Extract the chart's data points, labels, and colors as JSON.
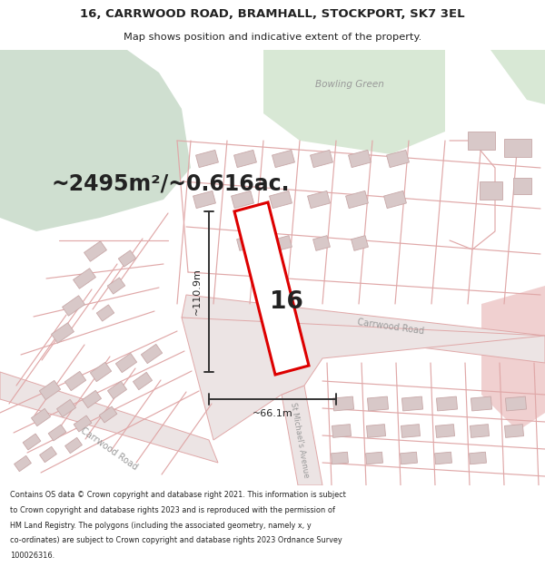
{
  "title_line1": "16, CARRWOOD ROAD, BRAMHALL, STOCKPORT, SK7 3EL",
  "title_line2": "Map shows position and indicative extent of the property.",
  "area_text": "~2495m²/~0.616ac.",
  "label_16": "16",
  "dim_vertical": "~110.9m",
  "dim_horizontal": "~66.1m",
  "bowling_green_label": "Bowling Green",
  "carrwood_road_label1": "Carrwood Road",
  "carrwood_road_label2": "Carrwood Road",
  "st_michaels_label": "St Michael's Avenue",
  "footer_lines": [
    "Contains OS data © Crown copyright and database right 2021. This information is subject",
    "to Crown copyright and database rights 2023 and is reproduced with the permission of",
    "HM Land Registry. The polygons (including the associated geometry, namely x, y",
    "co-ordinates) are subject to Crown copyright and database rights 2023 Ordnance Survey",
    "100026316."
  ],
  "bg_map_color": "#f5f0f0",
  "bg_green_large": "#cfdfd0",
  "bg_green_bowling": "#d8e8d5",
  "road_fill": "#f0e8e8",
  "plot_line_color": "#e0a8a8",
  "building_fill": "#d8c8c8",
  "building_edge": "#c8a8a8",
  "highlight_color": "#dd0000",
  "text_dark": "#222222",
  "text_gray": "#777777",
  "text_label_gray": "#999999",
  "dim_line_color": "#333333",
  "title_bg": "#ffffff",
  "footer_bg": "#ffffff",
  "pink_area_right": "#f0d0d0"
}
